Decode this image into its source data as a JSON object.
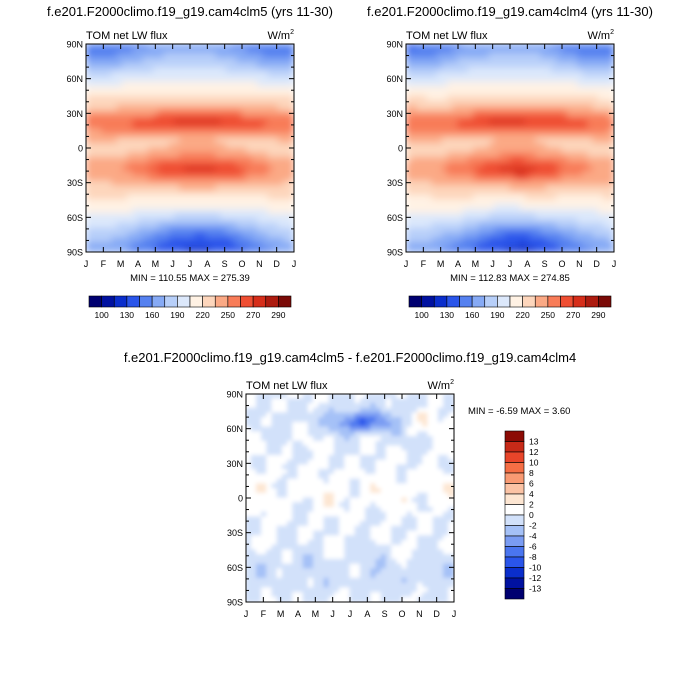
{
  "colors": {
    "abs_scale": [
      "#000070",
      "#0011a0",
      "#0a2ecc",
      "#2a55ea",
      "#5581f0",
      "#86aaf5",
      "#b7cff9",
      "#dce8fb",
      "#fff2e4",
      "#fdd6bc",
      "#fba985",
      "#f87c58",
      "#ef4e32",
      "#d62e1a",
      "#ad1b0f",
      "#7a0a07"
    ],
    "diff_scale": [
      "#000070",
      "#0011a0",
      "#0a2ecc",
      "#2a55ea",
      "#4a75ef",
      "#7a9cf3",
      "#a5c1f7",
      "#d2e1fa",
      "#ffffff",
      "#fde6d2",
      "#fbc3a5",
      "#f99a73",
      "#f56e45",
      "#e8452a",
      "#c72a18",
      "#8c0b05"
    ]
  },
  "chart_data": [
    {
      "type": "heatmap",
      "title": "f.e201.F2000climo.f19_g19.cam4clm5 (yrs 11-30)",
      "left_label": "TOM net LW flux",
      "units_label": "W/m",
      "units_sup": "2",
      "x_ticks": [
        "J",
        "F",
        "M",
        "A",
        "M",
        "J",
        "J",
        "A",
        "S",
        "O",
        "N",
        "D",
        "J"
      ],
      "y_ticks": [
        "90N",
        "60N",
        "30N",
        "0",
        "30S",
        "60S",
        "90S"
      ],
      "stats": "MIN = 110.55 MAX = 275.39",
      "colorbar_labels": [
        "100",
        "130",
        "160",
        "190",
        "220",
        "250",
        "270",
        "290"
      ],
      "field": "abs",
      "min": 110.55,
      "max": 275.39
    },
    {
      "type": "heatmap",
      "title": "f.e201.F2000climo.f19_g19.cam4clm4 (yrs 11-30)",
      "left_label": "TOM net LW flux",
      "units_label": "W/m",
      "units_sup": "2",
      "x_ticks": [
        "J",
        "F",
        "M",
        "A",
        "M",
        "J",
        "J",
        "A",
        "S",
        "O",
        "N",
        "D",
        "J"
      ],
      "y_ticks": [
        "90N",
        "60N",
        "30N",
        "0",
        "30S",
        "60S",
        "90S"
      ],
      "stats": "MIN = 112.83 MAX = 274.85",
      "colorbar_labels": [
        "100",
        "130",
        "160",
        "190",
        "220",
        "250",
        "270",
        "290"
      ],
      "field": "abs",
      "min": 112.83,
      "max": 274.85
    },
    {
      "type": "heatmap",
      "title": "f.e201.F2000climo.f19_g19.cam4clm5 - f.e201.F2000climo.f19_g19.cam4clm4",
      "left_label": "TOM net LW flux",
      "units_label": "W/m",
      "units_sup": "2",
      "x_ticks": [
        "J",
        "F",
        "M",
        "A",
        "M",
        "J",
        "J",
        "A",
        "S",
        "O",
        "N",
        "D",
        "J"
      ],
      "y_ticks": [
        "90N",
        "60N",
        "30N",
        "0",
        "30S",
        "60S",
        "90S"
      ],
      "stats": "MIN =  -6.59 MAX =   3.60",
      "colorbar_labels": [
        "13",
        "12",
        "10",
        "8",
        "6",
        "4",
        "2",
        "0",
        "-2",
        "-4",
        "-6",
        "-8",
        "-10",
        "-12",
        "-13"
      ],
      "field": "diff",
      "min": -6.59,
      "max": 3.6
    }
  ]
}
